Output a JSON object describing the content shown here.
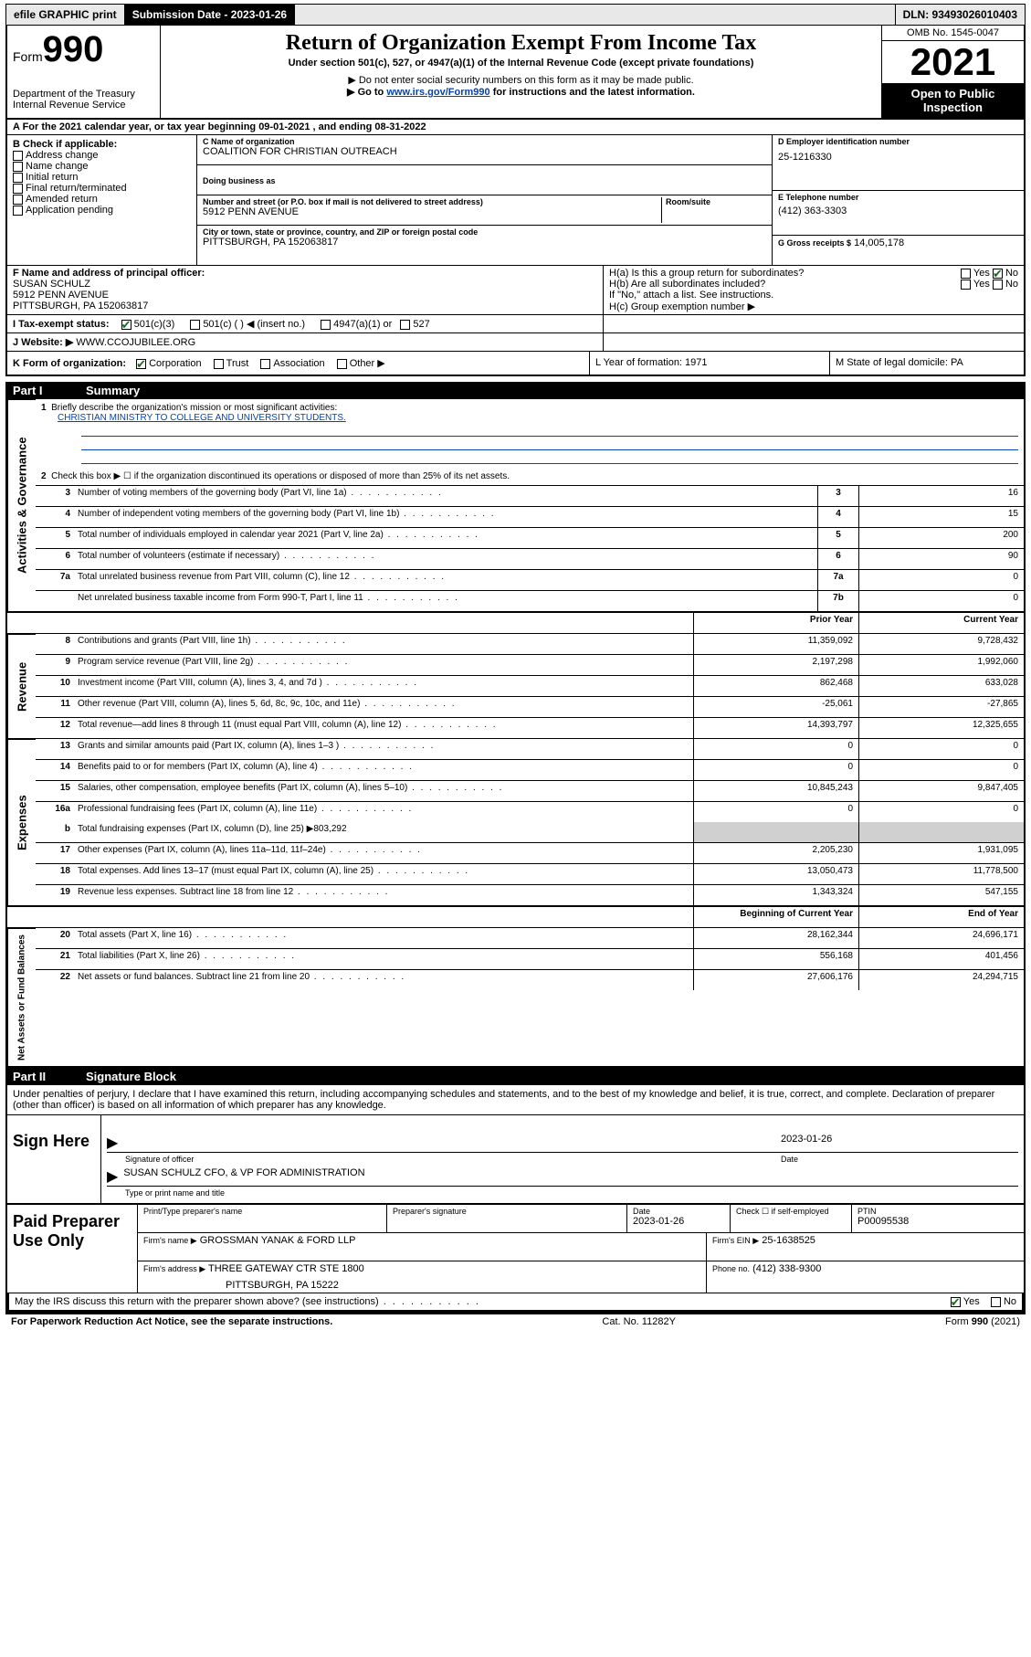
{
  "topbar": {
    "efile": "efile GRAPHIC print",
    "submission_label": "Submission Date - 2023-01-26",
    "dln": "DLN: 93493026010403"
  },
  "header": {
    "form_label": "Form",
    "form_number": "990",
    "dept": "Department of the Treasury",
    "irs": "Internal Revenue Service",
    "title": "Return of Organization Exempt From Income Tax",
    "subtitle": "Under section 501(c), 527, or 4947(a)(1) of the Internal Revenue Code (except private foundations)",
    "note1": "▶ Do not enter social security numbers on this form as it may be made public.",
    "note2_pre": "▶ Go to ",
    "note2_link": "www.irs.gov/Form990",
    "note2_post": " for instructions and the latest information.",
    "omb": "OMB No. 1545-0047",
    "year": "2021",
    "open": "Open to Public Inspection"
  },
  "lineA": "A For the 2021 calendar year, or tax year beginning 09-01-2021   , and ending 08-31-2022",
  "boxB": {
    "title": "B Check if applicable:",
    "items": [
      "Address change",
      "Name change",
      "Initial return",
      "Final return/terminated",
      "Amended return",
      "Application pending"
    ]
  },
  "boxC": {
    "name_label": "C Name of organization",
    "name": "COALITION FOR CHRISTIAN OUTREACH",
    "dba_label": "Doing business as",
    "addr_label": "Number and street (or P.O. box if mail is not delivered to street address)",
    "room_label": "Room/suite",
    "addr": "5912 PENN AVENUE",
    "city_label": "City or town, state or province, country, and ZIP or foreign postal code",
    "city": "PITTSBURGH, PA  152063817"
  },
  "boxD": {
    "label": "D Employer identification number",
    "value": "25-1216330"
  },
  "boxE": {
    "label": "E Telephone number",
    "value": "(412) 363-3303"
  },
  "boxG": {
    "label": "G Gross receipts $",
    "value": "14,005,178"
  },
  "boxF": {
    "label": "F Name and address of principal officer:",
    "line1": "SUSAN SCHULZ",
    "line2": "5912 PENN AVENUE",
    "line3": "PITTSBURGH, PA  152063817"
  },
  "boxH": {
    "ha": "H(a)  Is this a group return for subordinates?",
    "hb": "H(b)  Are all subordinates included?",
    "hb_note": "If \"No,\" attach a list. See instructions.",
    "hc": "H(c)  Group exemption number ▶",
    "yes": "Yes",
    "no": "No"
  },
  "rowI": {
    "label": "I    Tax-exempt status:",
    "opts": [
      "501(c)(3)",
      "501(c) (  ) ◀ (insert no.)",
      "4947(a)(1) or",
      "527"
    ]
  },
  "rowJ": {
    "label": "J    Website: ▶",
    "value": "WWW.CCOJUBILEE.ORG"
  },
  "rowK": {
    "label": "K Form of organization:",
    "opts": [
      "Corporation",
      "Trust",
      "Association",
      "Other ▶"
    ],
    "L": "L Year of formation: 1971",
    "M": "M State of legal domicile: PA"
  },
  "part1": {
    "label": "Part I",
    "title": "Summary"
  },
  "summary": {
    "q1": "Briefly describe the organization's mission or most significant activities:",
    "q1_ans": "CHRISTIAN MINISTRY TO COLLEGE AND UNIVERSITY STUDENTS.",
    "q2": "Check this box ▶ ☐  if the organization discontinued its operations or disposed of more than 25% of its net assets.",
    "lines_gov": [
      {
        "n": "3",
        "d": "Number of voting members of the governing body (Part VI, line 1a)",
        "box": "3",
        "v": "16"
      },
      {
        "n": "4",
        "d": "Number of independent voting members of the governing body (Part VI, line 1b)",
        "box": "4",
        "v": "15"
      },
      {
        "n": "5",
        "d": "Total number of individuals employed in calendar year 2021 (Part V, line 2a)",
        "box": "5",
        "v": "200"
      },
      {
        "n": "6",
        "d": "Total number of volunteers (estimate if necessary)",
        "box": "6",
        "v": "90"
      },
      {
        "n": "7a",
        "d": "Total unrelated business revenue from Part VIII, column (C), line 12",
        "box": "7a",
        "v": "0"
      },
      {
        "n": "",
        "d": "Net unrelated business taxable income from Form 990-T, Part I, line 11",
        "box": "7b",
        "v": "0"
      }
    ],
    "col_prior": "Prior Year",
    "col_current": "Current Year",
    "lines_rev": [
      {
        "n": "8",
        "d": "Contributions and grants (Part VIII, line 1h)",
        "p": "11,359,092",
        "c": "9,728,432"
      },
      {
        "n": "9",
        "d": "Program service revenue (Part VIII, line 2g)",
        "p": "2,197,298",
        "c": "1,992,060"
      },
      {
        "n": "10",
        "d": "Investment income (Part VIII, column (A), lines 3, 4, and 7d )",
        "p": "862,468",
        "c": "633,028"
      },
      {
        "n": "11",
        "d": "Other revenue (Part VIII, column (A), lines 5, 6d, 8c, 9c, 10c, and 11e)",
        "p": "-25,061",
        "c": "-27,865"
      },
      {
        "n": "12",
        "d": "Total revenue—add lines 8 through 11 (must equal Part VIII, column (A), line 12)",
        "p": "14,393,797",
        "c": "12,325,655"
      }
    ],
    "lines_exp": [
      {
        "n": "13",
        "d": "Grants and similar amounts paid (Part IX, column (A), lines 1–3 )",
        "p": "0",
        "c": "0"
      },
      {
        "n": "14",
        "d": "Benefits paid to or for members (Part IX, column (A), line 4)",
        "p": "0",
        "c": "0"
      },
      {
        "n": "15",
        "d": "Salaries, other compensation, employee benefits (Part IX, column (A), lines 5–10)",
        "p": "10,845,243",
        "c": "9,847,405"
      },
      {
        "n": "16a",
        "d": "Professional fundraising fees (Part IX, column (A), line 11e)",
        "p": "0",
        "c": "0"
      }
    ],
    "line16b": {
      "n": "b",
      "d": "Total fundraising expenses (Part IX, column (D), line 25) ▶803,292"
    },
    "lines_exp2": [
      {
        "n": "17",
        "d": "Other expenses (Part IX, column (A), lines 11a–11d, 11f–24e)",
        "p": "2,205,230",
        "c": "1,931,095"
      },
      {
        "n": "18",
        "d": "Total expenses. Add lines 13–17 (must equal Part IX, column (A), line 25)",
        "p": "13,050,473",
        "c": "11,778,500"
      },
      {
        "n": "19",
        "d": "Revenue less expenses. Subtract line 18 from line 12",
        "p": "1,343,324",
        "c": "547,155"
      }
    ],
    "col_begin": "Beginning of Current Year",
    "col_end": "End of Year",
    "lines_net": [
      {
        "n": "20",
        "d": "Total assets (Part X, line 16)",
        "p": "28,162,344",
        "c": "24,696,171"
      },
      {
        "n": "21",
        "d": "Total liabilities (Part X, line 26)",
        "p": "556,168",
        "c": "401,456"
      },
      {
        "n": "22",
        "d": "Net assets or fund balances. Subtract line 21 from line 20",
        "p": "27,606,176",
        "c": "24,294,715"
      }
    ],
    "vtabs": {
      "gov": "Activities & Governance",
      "rev": "Revenue",
      "exp": "Expenses",
      "net": "Net Assets or Fund Balances"
    }
  },
  "part2": {
    "label": "Part II",
    "title": "Signature Block"
  },
  "sig": {
    "decl": "Under penalties of perjury, I declare that I have examined this return, including accompanying schedules and statements, and to the best of my knowledge and belief, it is true, correct, and complete. Declaration of preparer (other than officer) is based on all information of which preparer has any knowledge.",
    "sign_here": "Sign Here",
    "sig_officer": "Signature of officer",
    "date": "Date",
    "date_val": "2023-01-26",
    "name": "SUSAN SCHULZ  CFO, & VP FOR ADMINISTRATION",
    "name_label": "Type or print name and title"
  },
  "paid": {
    "title": "Paid Preparer Use Only",
    "h1": "Print/Type preparer's name",
    "h2": "Preparer's signature",
    "h3": "Date",
    "h3v": "2023-01-26",
    "h4": "Check ☐ if self-employed",
    "h5": "PTIN",
    "h5v": "P00095538",
    "firm_name_l": "Firm's name    ▶",
    "firm_name": "GROSSMAN YANAK & FORD LLP",
    "firm_ein_l": "Firm's EIN ▶",
    "firm_ein": "25-1638525",
    "firm_addr_l": "Firm's address ▶",
    "firm_addr1": "THREE GATEWAY CTR STE 1800",
    "firm_addr2": "PITTSBURGH, PA  15222",
    "phone_l": "Phone no.",
    "phone": "(412) 338-9300"
  },
  "may_irs": "May the IRS discuss this return with the preparer shown above? (see instructions)",
  "footer": {
    "left": "For Paperwork Reduction Act Notice, see the separate instructions.",
    "mid": "Cat. No. 11282Y",
    "right": "Form 990 (2021)"
  }
}
